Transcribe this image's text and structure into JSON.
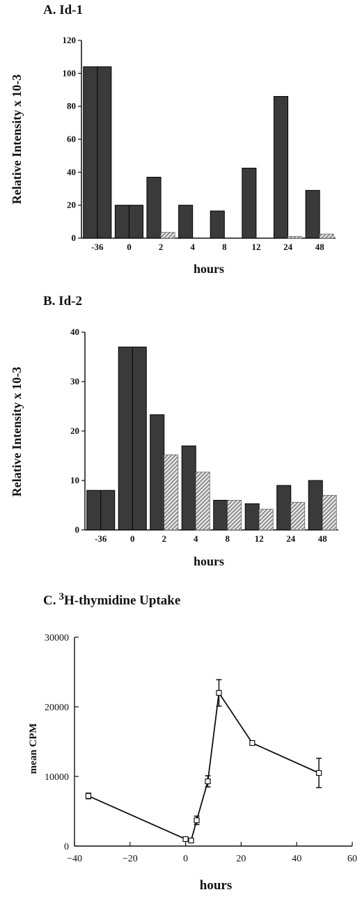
{
  "chart_data": [
    {
      "type": "bar",
      "title": "A.  Id-1",
      "xlabel": "hours",
      "ylabel": "Relative Intensity x 10-3",
      "categories": [
        "-36",
        "0",
        "2",
        "4",
        "8",
        "12",
        "24",
        "48"
      ],
      "ylim": [
        0,
        120
      ],
      "yticks": [
        0,
        20,
        40,
        60,
        80,
        100,
        120
      ],
      "series": [
        {
          "fill": "#3a3a3a",
          "values": [
            104,
            20,
            37,
            20,
            16.5,
            42.5,
            86,
            29
          ]
        },
        {
          "fill": "hatched",
          "values": [
            null,
            null,
            3.5,
            0,
            0,
            0,
            1,
            2.5
          ]
        }
      ]
    },
    {
      "type": "bar",
      "title": "B.  Id-2",
      "xlabel": "hours",
      "ylabel": "Relative Intensity x 10-3",
      "categories": [
        "-36",
        "0",
        "2",
        "4",
        "8",
        "12",
        "24",
        "48"
      ],
      "ylim": [
        0,
        40
      ],
      "yticks": [
        0,
        10,
        20,
        30,
        40
      ],
      "series": [
        {
          "fill": "#3a3a3a",
          "values": [
            8,
            37,
            23.3,
            17,
            6,
            5.3,
            9,
            10
          ]
        },
        {
          "fill": "hatched",
          "values": [
            null,
            null,
            15.2,
            11.7,
            6,
            4.2,
            5.6,
            7
          ]
        }
      ]
    },
    {
      "type": "line",
      "title": "C. 3H-thymidine Uptake",
      "title_parts": {
        "superscript": "3",
        "text": "H-thymidine Uptake",
        "prefix": "C."
      },
      "xlabel": "hours",
      "ylabel": "mean CPM",
      "xlim": [
        -40,
        60
      ],
      "ylim": [
        0,
        30000
      ],
      "xticks": [
        "−40",
        "−20",
        "0",
        "20",
        "40",
        "60"
      ],
      "yticks": [
        "0",
        "10000",
        "20000",
        "30000"
      ],
      "series": [
        {
          "x": [
            -35,
            0,
            2,
            4,
            8,
            12,
            24,
            48
          ],
          "y": [
            7200,
            1000,
            800,
            3700,
            9300,
            22000,
            14800,
            10500
          ],
          "err": [
            400,
            0,
            0,
            600,
            800,
            1900,
            0,
            2100
          ]
        }
      ]
    }
  ]
}
